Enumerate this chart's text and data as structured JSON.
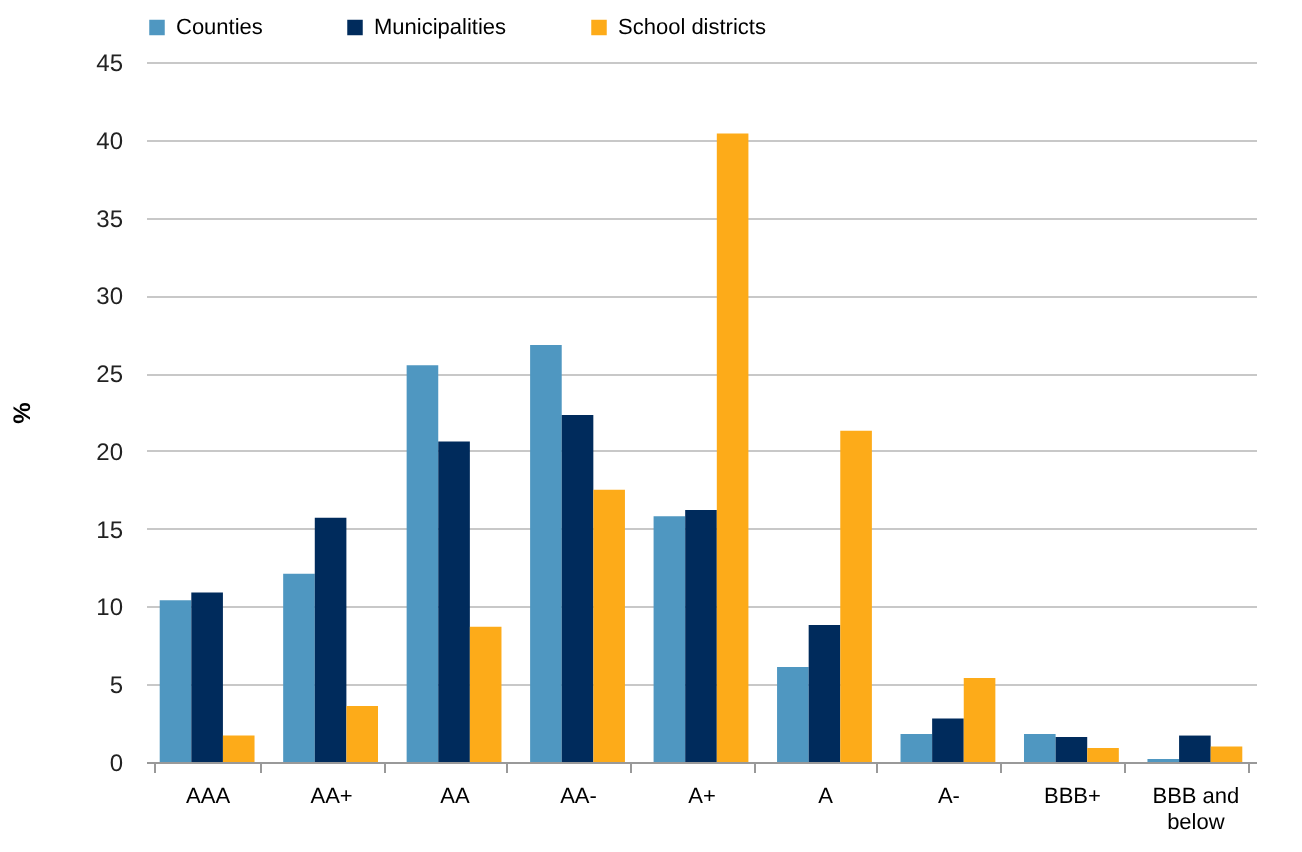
{
  "chart_data": {
    "type": "bar",
    "ylabel": "%",
    "categories": [
      "AAA",
      "AA+",
      "AA",
      "AA-",
      "A+",
      "A",
      "A-",
      "BBB+",
      "BBB and below"
    ],
    "series": [
      {
        "name": "Counties",
        "color": "#4f97c1",
        "values": [
          10.4,
          12.1,
          25.5,
          26.8,
          15.8,
          6.1,
          1.8,
          1.8,
          0.2
        ]
      },
      {
        "name": "Municipalities",
        "color": "#002b5c",
        "values": [
          10.9,
          15.7,
          20.6,
          22.3,
          16.2,
          8.8,
          2.8,
          1.6,
          1.7
        ]
      },
      {
        "name": "School districts",
        "color": "#fdab19",
        "values": [
          1.7,
          3.6,
          8.7,
          17.5,
          40.4,
          21.3,
          5.4,
          0.9,
          1.0
        ]
      }
    ],
    "ylim": [
      0,
      45
    ],
    "yticks": [
      0,
      5,
      10,
      15,
      20,
      25,
      30,
      35,
      40,
      45
    ],
    "grid": "y",
    "legend": "top"
  }
}
